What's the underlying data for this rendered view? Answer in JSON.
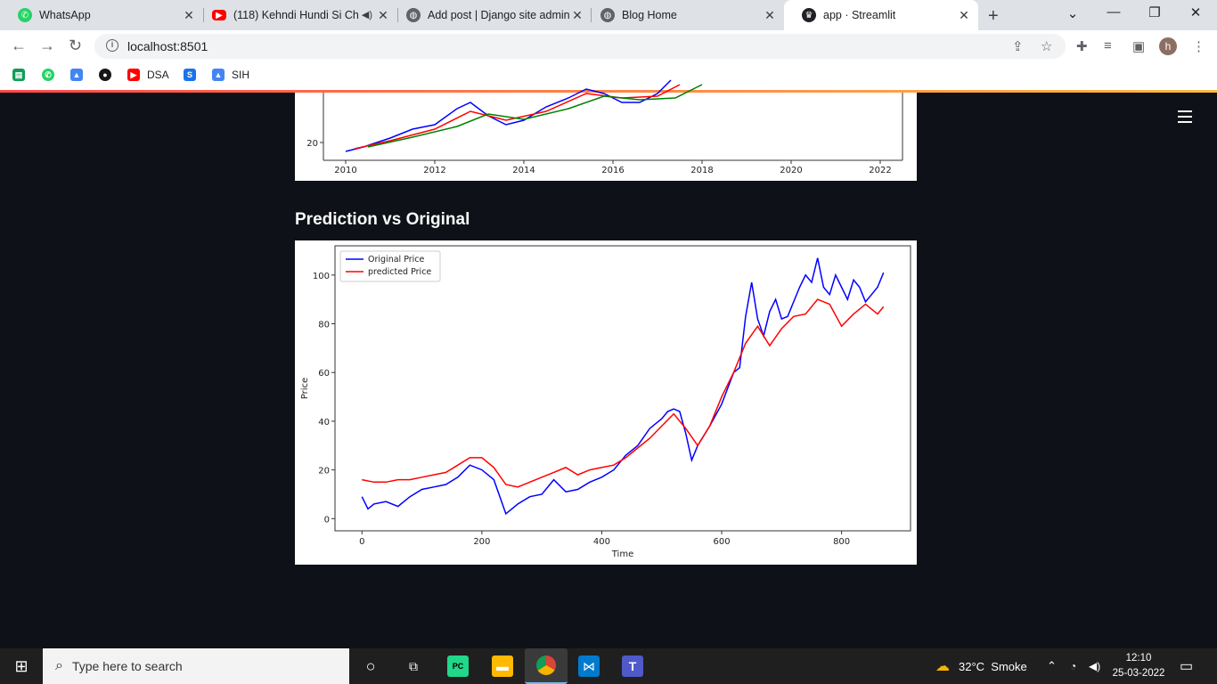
{
  "browser": {
    "tabs": [
      {
        "title": "WhatsApp",
        "favicon": "whatsapp-icon",
        "color": "#25d366"
      },
      {
        "title": "(118) Kehndi Hundi Si Ch",
        "favicon": "youtube-icon",
        "color": "#ff0000"
      },
      {
        "title": "Add post | Django site admin",
        "favicon": "globe-icon",
        "color": "#5f6368"
      },
      {
        "title": "Blog Home",
        "favicon": "globe-icon",
        "color": "#5f6368"
      },
      {
        "title": "app · Streamlit",
        "favicon": "streamlit-icon",
        "color": "#202124"
      }
    ],
    "url": "localhost:8501",
    "profile_initial": "h",
    "bookmarks": [
      {
        "label": "",
        "icon": "classroom-icon",
        "color": "#0f9d58"
      },
      {
        "label": "",
        "icon": "whatsapp-icon",
        "color": "#25d366"
      },
      {
        "label": "",
        "icon": "drive-icon",
        "color": "#4285f4"
      },
      {
        "label": "",
        "icon": "github-icon",
        "color": "#181717"
      },
      {
        "label": "DSA",
        "icon": "youtube-icon",
        "color": "#ff0000"
      },
      {
        "label": "",
        "icon": "s-icon",
        "color": "#1a73e8"
      },
      {
        "label": "SIH",
        "icon": "drive-icon",
        "color": "#4285f4"
      }
    ]
  },
  "app": {
    "section_heading": "Prediction vs Original",
    "accent_gradient": [
      "#ff4b4b",
      "#ffbd45"
    ],
    "background": "#0e1117"
  },
  "chart_data": [
    {
      "type": "line",
      "title": "",
      "xlabel": "",
      "ylabel": "",
      "x_ticks": [
        "2010",
        "2012",
        "2014",
        "2016",
        "2018",
        "2020",
        "2022"
      ],
      "y_ticks_visible": [
        "20"
      ],
      "series": [
        {
          "color": "#0000ff",
          "x": [
            2010.0,
            2010.4,
            2011.0,
            2011.5,
            2012.0,
            2012.5,
            2012.8,
            2013.2,
            2013.6,
            2014.0,
            2014.5,
            2015.0,
            2015.4,
            2015.8,
            2016.2,
            2016.6,
            2017.0,
            2017.3
          ],
          "values": [
            19,
            19.5,
            20.5,
            21.5,
            22,
            23.8,
            24.5,
            23,
            22,
            22.5,
            24,
            25,
            26,
            25.5,
            24.5,
            24.5,
            25.5,
            27
          ]
        },
        {
          "color": "#ff0000",
          "x": [
            2010.2,
            2011.0,
            2012.0,
            2012.8,
            2013.6,
            2014.5,
            2015.4,
            2016.2,
            2017.0,
            2017.5
          ],
          "values": [
            19.3,
            20.2,
            21.5,
            23.5,
            22.5,
            23.5,
            25.5,
            25,
            25.2,
            26.5
          ]
        },
        {
          "color": "#008000",
          "x": [
            2010.5,
            2011.5,
            2012.5,
            2013.2,
            2014.0,
            2015.0,
            2015.8,
            2016.6,
            2017.4,
            2018.0
          ],
          "values": [
            19.5,
            20.6,
            21.8,
            23.2,
            22.6,
            23.8,
            25.2,
            24.8,
            25,
            26.5
          ]
        }
      ]
    },
    {
      "type": "line",
      "title": "",
      "xlabel": "Time",
      "ylabel": "Price",
      "xlim": [
        -45,
        915
      ],
      "ylim": [
        -5,
        112
      ],
      "x_ticks": [
        0,
        200,
        400,
        600,
        800
      ],
      "y_ticks": [
        0,
        20,
        40,
        60,
        80,
        100
      ],
      "legend": "upper-left",
      "series": [
        {
          "name": "Original Price",
          "color": "#0000ff",
          "x": [
            0,
            10,
            20,
            40,
            60,
            80,
            100,
            120,
            140,
            160,
            180,
            200,
            220,
            240,
            260,
            280,
            300,
            320,
            340,
            360,
            380,
            400,
            420,
            440,
            460,
            480,
            500,
            510,
            520,
            530,
            540,
            550,
            560,
            580,
            600,
            620,
            630,
            640,
            650,
            660,
            670,
            680,
            690,
            700,
            710,
            720,
            730,
            740,
            750,
            760,
            770,
            780,
            790,
            800,
            810,
            820,
            830,
            840,
            850,
            860,
            870
          ],
          "values": [
            9,
            4,
            6,
            7,
            5,
            9,
            12,
            13,
            14,
            17,
            22,
            20,
            16,
            2,
            6,
            9,
            10,
            16,
            11,
            12,
            15,
            17,
            20,
            26,
            30,
            37,
            41,
            44,
            45,
            44,
            35,
            24,
            30,
            38,
            47,
            60,
            62,
            83,
            97,
            82,
            75,
            85,
            90,
            82,
            83,
            89,
            95,
            100,
            97,
            107,
            95,
            92,
            100,
            95,
            90,
            98,
            95,
            89,
            92,
            95,
            101
          ]
        },
        {
          "name": "predicted Price",
          "color": "#ff0000",
          "x": [
            0,
            20,
            40,
            60,
            80,
            100,
            120,
            140,
            160,
            180,
            200,
            220,
            240,
            260,
            280,
            300,
            320,
            340,
            360,
            380,
            400,
            420,
            440,
            460,
            480,
            500,
            520,
            540,
            560,
            580,
            600,
            620,
            640,
            660,
            680,
            700,
            720,
            740,
            760,
            780,
            800,
            820,
            840,
            860,
            870
          ],
          "values": [
            16,
            15,
            15,
            16,
            16,
            17,
            18,
            19,
            22,
            25,
            25,
            21,
            14,
            13,
            15,
            17,
            19,
            21,
            18,
            20,
            21,
            22,
            25,
            29,
            33,
            38,
            43,
            37,
            30,
            38,
            50,
            60,
            72,
            79,
            71,
            78,
            83,
            84,
            90,
            88,
            79,
            84,
            88,
            84,
            87
          ]
        }
      ]
    }
  ],
  "taskbar": {
    "search_placeholder": "Type here to search",
    "weather": "32°C  Smoke",
    "time": "12:10",
    "date": "25-03-2022"
  }
}
